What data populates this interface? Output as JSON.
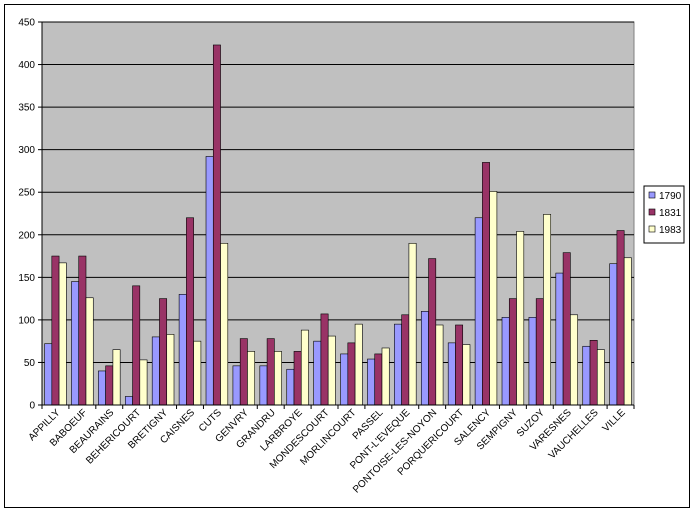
{
  "chart_data": {
    "type": "bar",
    "title": "",
    "xlabel": "",
    "ylabel": "",
    "ylim": [
      0,
      450
    ],
    "yticks": [
      0,
      50,
      100,
      150,
      200,
      250,
      300,
      350,
      400,
      450
    ],
    "grid": true,
    "legend_position": "right",
    "plot_background": "#c0c0c0",
    "categories": [
      "APPILLY",
      "BABOEUF",
      "BEAURAINS",
      "BEHERICOURT",
      "BRETIGNY",
      "CAISNES",
      "CUTS",
      "GENVRY",
      "GRANDRU",
      "LARBROYE",
      "MONDESCOURT",
      "MORLINCOURT",
      "PASSEL",
      "PONT-L'EVEQUE",
      "PONTOISE-LES-NOYON",
      "PORQUERICOURT",
      "SALENCY",
      "SEMPIGNY",
      "SUZOY",
      "VARESNES",
      "VAUCHELLES",
      "VILLE"
    ],
    "series": [
      {
        "name": "1790",
        "color": "#9999ff",
        "values": [
          72,
          145,
          40,
          10,
          80,
          130,
          292,
          46,
          46,
          42,
          75,
          60,
          54,
          95,
          110,
          73,
          220,
          103,
          103,
          155,
          69,
          166
        ]
      },
      {
        "name": "1831",
        "color": "#993366",
        "values": [
          175,
          175,
          46,
          140,
          125,
          220,
          423,
          78,
          78,
          63,
          107,
          73,
          60,
          106,
          172,
          94,
          285,
          125,
          125,
          179,
          76,
          205
        ]
      },
      {
        "name": "1983",
        "color": "#ffffcc",
        "values": [
          167,
          126,
          65,
          53,
          83,
          75,
          190,
          63,
          63,
          88,
          81,
          95,
          67,
          190,
          94,
          71,
          251,
          204,
          224,
          106,
          65,
          173
        ]
      }
    ]
  }
}
